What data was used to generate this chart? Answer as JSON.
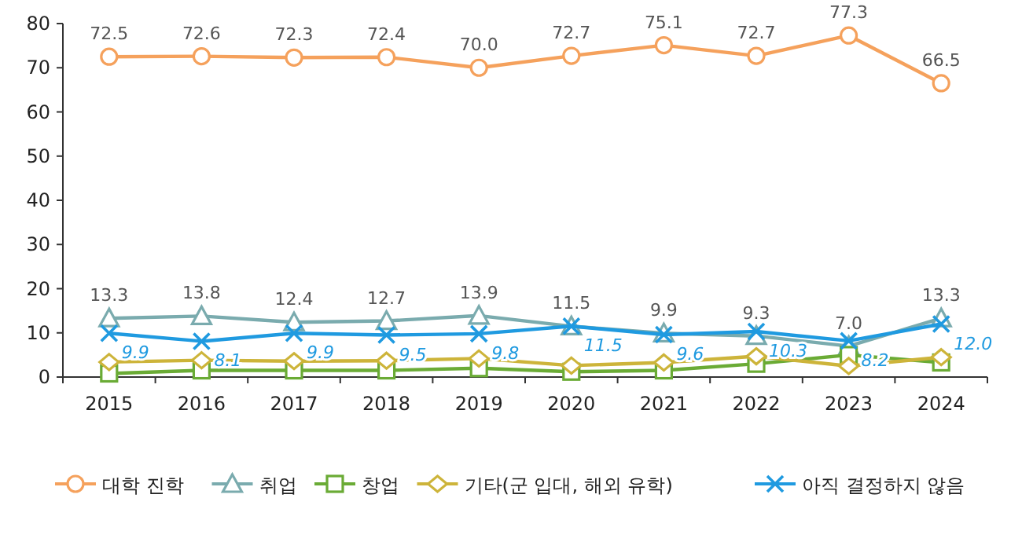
{
  "chart_data": {
    "type": "line",
    "categories": [
      "2015",
      "2016",
      "2017",
      "2018",
      "2019",
      "2020",
      "2021",
      "2022",
      "2023",
      "2024"
    ],
    "ylim": [
      0,
      80
    ],
    "yticks": [
      0,
      10,
      20,
      30,
      40,
      50,
      60,
      70,
      80
    ],
    "grid": false,
    "legend": "bottom",
    "series": [
      {
        "name": "대학 진학",
        "color": "#f5a15c",
        "marker": "circle",
        "values": [
          72.5,
          72.6,
          72.3,
          72.4,
          70.0,
          72.7,
          75.1,
          72.7,
          77.3,
          66.5
        ],
        "value_labels": [
          "72.5",
          "72.6",
          "72.3",
          "72.4",
          "70.0",
          "72.7",
          "75.1",
          "72.7",
          "77.3",
          "66.5"
        ]
      },
      {
        "name": "취업",
        "color": "#7aabae",
        "marker": "triangle",
        "values": [
          13.3,
          13.8,
          12.4,
          12.7,
          13.9,
          11.5,
          9.9,
          9.3,
          7.0,
          13.3
        ],
        "value_labels": [
          "13.3",
          "13.8",
          "12.4",
          "12.7",
          "13.9",
          "11.5",
          "9.9",
          "9.3",
          "7.0",
          "13.3"
        ]
      },
      {
        "name": "창업",
        "color": "#6aab35",
        "marker": "square",
        "values": [
          0.8,
          1.5,
          1.5,
          1.5,
          2.0,
          1.2,
          1.5,
          3.0,
          5.0,
          3.3
        ]
      },
      {
        "name": "기타(군 입대, 해외 유학)",
        "color": "#cdb43a",
        "marker": "diamond",
        "values": [
          3.4,
          3.8,
          3.6,
          3.7,
          4.2,
          2.6,
          3.3,
          4.7,
          2.5,
          4.5
        ]
      },
      {
        "name": "아직 결정하지 않음",
        "color": "#1f9ae0",
        "marker": "cross",
        "values": [
          9.9,
          8.1,
          9.9,
          9.5,
          9.8,
          11.5,
          9.6,
          10.3,
          8.2,
          12.0
        ],
        "value_labels": [
          "9.9",
          "8.1",
          "9.9",
          "9.5",
          "9.8",
          "11.5",
          "9.6",
          "10.3",
          "8.2",
          "12.0"
        ]
      }
    ]
  }
}
